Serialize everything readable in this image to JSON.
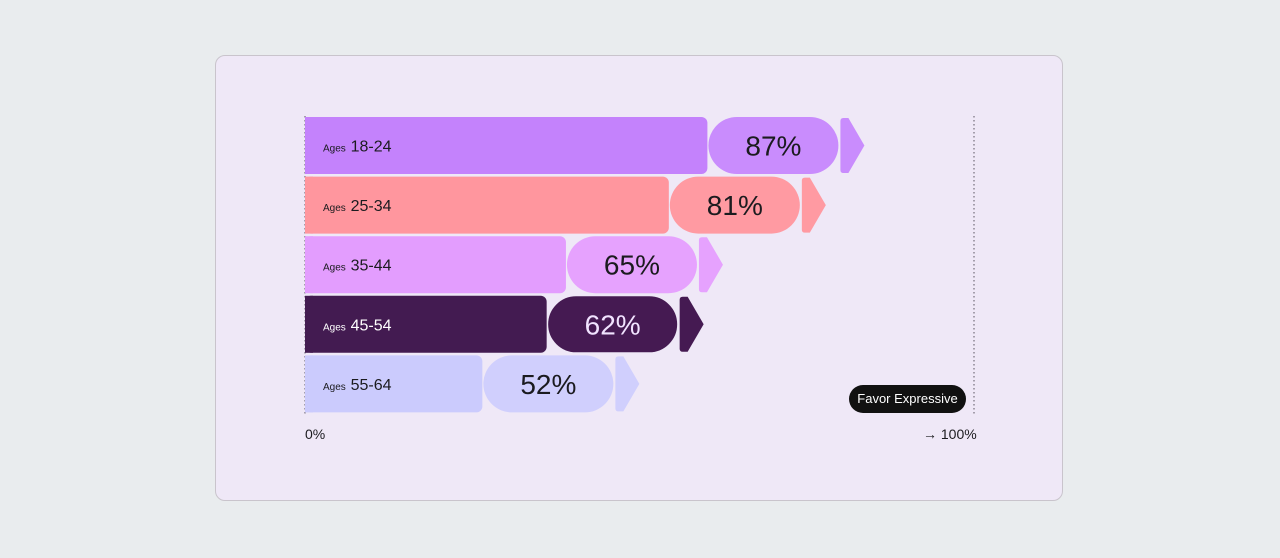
{
  "chart_data": {
    "type": "bar",
    "orientation": "horizontal",
    "categories": [
      "Ages 18-24",
      "Ages 25-34",
      "Ages 35-44",
      "Ages 45-54",
      "Ages 55-64"
    ],
    "category_prefix": "Ages",
    "category_ranges": [
      "18-24",
      "25-34",
      "35-44",
      "45-54",
      "55-64"
    ],
    "series": [
      {
        "name": "Favor Expressive",
        "values": [
          87,
          81,
          65,
          62,
          52
        ]
      }
    ],
    "value_labels": [
      "87%",
      "81%",
      "65%",
      "62%",
      "52%"
    ],
    "xlim": [
      0,
      100
    ],
    "x_axis_labels": {
      "min": "0%",
      "max": "→ 100%"
    },
    "legend": {
      "text": "Favor Expressive",
      "placement": "bottom-right"
    },
    "colors": {
      "bars": [
        "#c482fc",
        "#ff969e",
        "#e39dfe",
        "#431b51",
        "#cbcbfd"
      ],
      "pills": [
        "#c98cfd",
        "#ff9aa2",
        "#e6a2fe",
        "#451a52",
        "#d0cffd"
      ],
      "label_text": [
        "#1b1b1f",
        "#1b1b1f",
        "#1b1b1f",
        "#ffffff",
        "#1b1b1f"
      ],
      "pill_text": [
        "#1b1b1f",
        "#1b1b1f",
        "#1b1b1f",
        "#f1e3ff",
        "#1b1b1f"
      ],
      "background": "#efe8f7",
      "page_background": "#e9ecee"
    }
  }
}
